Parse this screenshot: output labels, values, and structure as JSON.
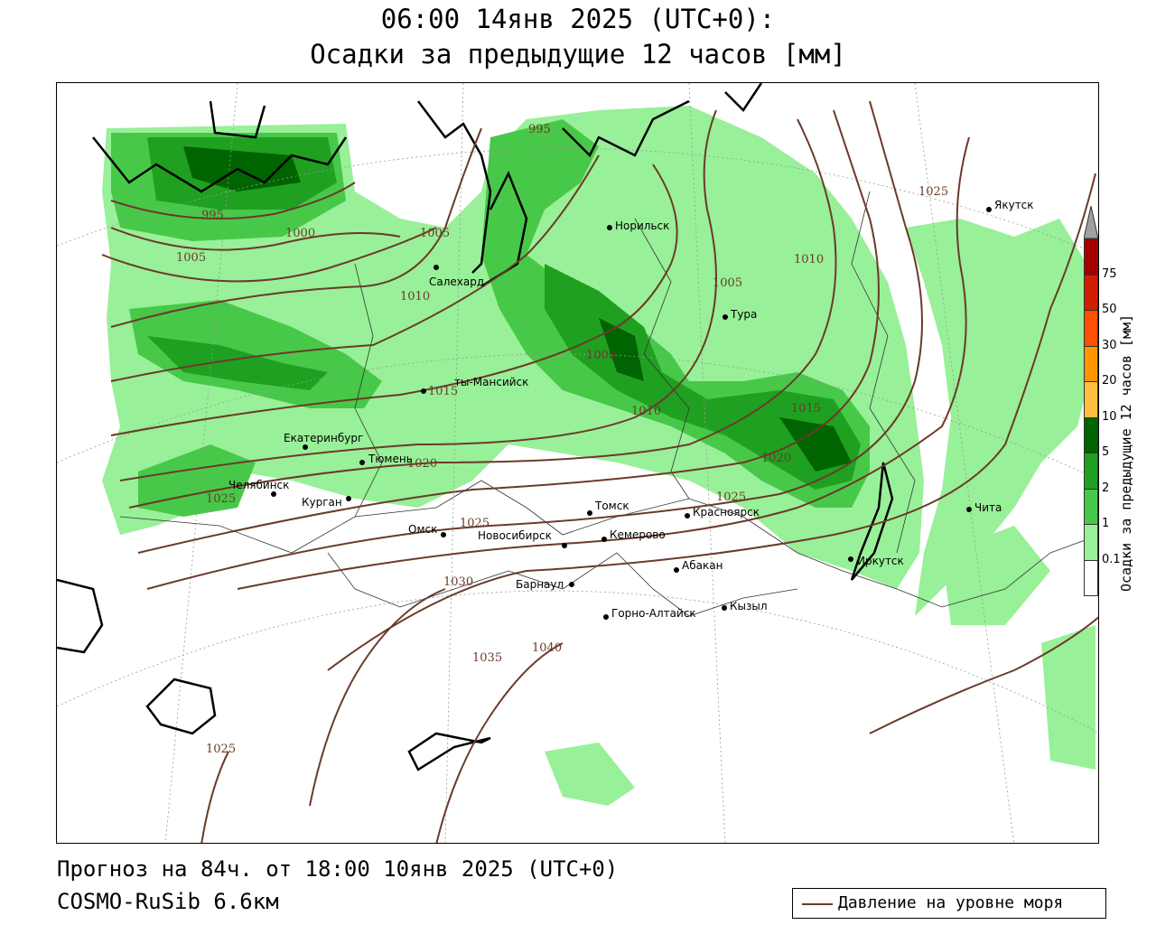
{
  "title_line1": "06:00 14янв 2025 (UTC+0):",
  "title_line2": "Осадки за предыдущие 12 часов [мм]",
  "forecast": "Прогноз на 84ч. от 18:00 10янв 2025 (UTC+0)",
  "model": "COSMO-RuSib 6.6км",
  "legend_label": "Давление на уровне моря",
  "colorbar": {
    "title": "Осадки за предыдущие 12 часов [мм]",
    "ticks": [
      "75",
      "50",
      "30",
      "20",
      "10",
      "5",
      "2",
      "1",
      "0.1"
    ],
    "colors": [
      "#a50000",
      "#d21e00",
      "#ff5000",
      "#ff9600",
      "#ffbf3c",
      "#006400",
      "#20a020",
      "#48c848",
      "#98f098",
      "#ffffff"
    ],
    "over_color": "#a0a0a0"
  },
  "colors": {
    "isobar": "#6b3a2a",
    "coast": "#000000",
    "border": "#333333"
  },
  "cities": [
    {
      "name": "Якутск"
    },
    {
      "name": "Норильск"
    },
    {
      "name": "Салехард"
    },
    {
      "name": "Тура"
    },
    {
      "name": "ты-Мансийск"
    },
    {
      "name": "Екатеринбург"
    },
    {
      "name": "Тюмень"
    },
    {
      "name": "Челябинск"
    },
    {
      "name": "Курган"
    },
    {
      "name": "Омск"
    },
    {
      "name": "Новосибирск"
    },
    {
      "name": "Томск"
    },
    {
      "name": "Кемерово"
    },
    {
      "name": "Красноярск"
    },
    {
      "name": "Абакан"
    },
    {
      "name": "Барнаул"
    },
    {
      "name": "Горно-Алтайск"
    },
    {
      "name": "Кызыл"
    },
    {
      "name": "Иркутск"
    },
    {
      "name": "Чита"
    }
  ],
  "isobar_labels": [
    "995",
    "995",
    "1000",
    "1005",
    "1005",
    "1010",
    "1005",
    "1010",
    "1000",
    "1015",
    "1010",
    "1015",
    "1020",
    "1020",
    "1025",
    "1025",
    "1025",
    "1025",
    "1030",
    "1035",
    "1040",
    "1025"
  ]
}
